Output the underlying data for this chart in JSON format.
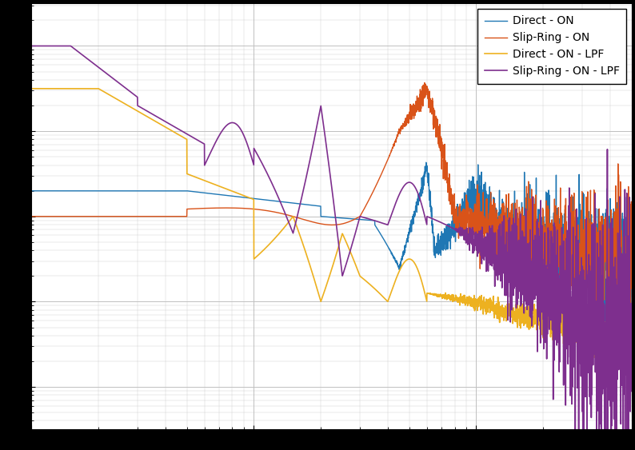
{
  "title": "",
  "xlabel": "",
  "ylabel": "",
  "colors": {
    "direct_on": "#1f77b4",
    "slipring_on": "#d95319",
    "direct_lpf": "#edb120",
    "slipring_lpf": "#7e2f8e"
  },
  "legend_labels": [
    "Direct - ON",
    "Slip-Ring - ON",
    "Direct - ON - LPF",
    "Slip-Ring - ON - LPF"
  ],
  "background_color": "#ffffff",
  "grid_color": "#c0c0c0",
  "figsize": [
    7.94,
    5.63
  ],
  "dpi": 100
}
